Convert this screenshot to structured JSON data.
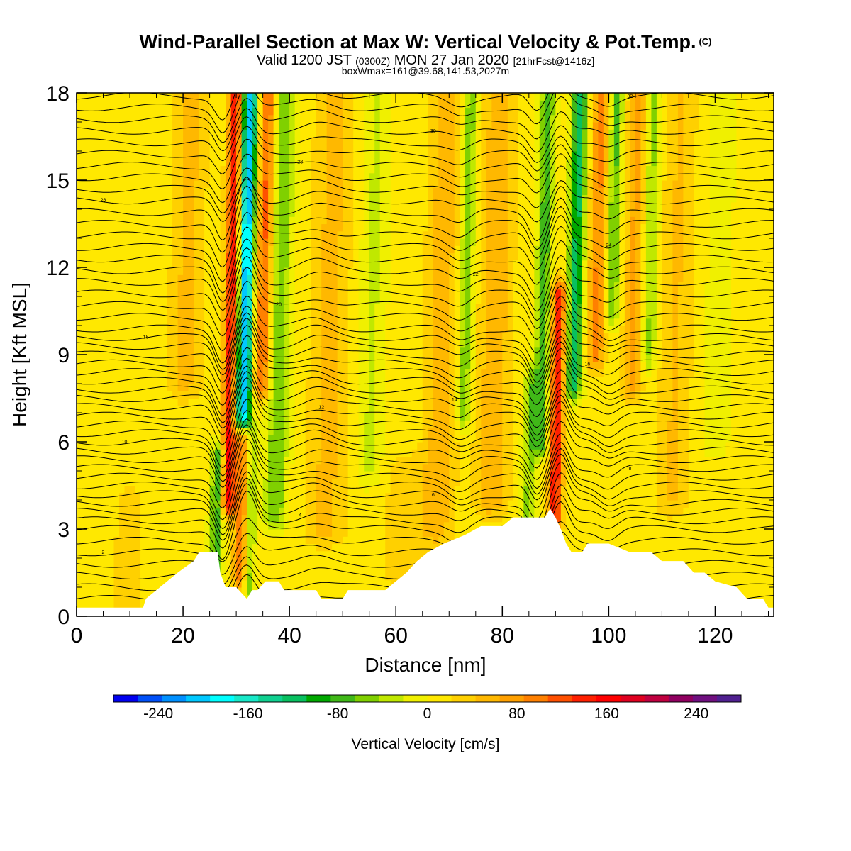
{
  "header": {
    "title": "Wind-Parallel Section at Max W: Vertical Velocity & Pot.Temp.",
    "copyright": "(C)",
    "valid_prefix": "Valid 1200 JST",
    "valid_utc": "(0300Z)",
    "valid_date": "MON 27 Jan 2020",
    "forecast": "[21hrFcst@1416z]",
    "box_info": "boxWmax=161@39.68,141.53,2027m"
  },
  "chart_data": {
    "type": "heatmap",
    "xlabel": "Distance [nm]",
    "ylabel": "Height [Kft MSL]",
    "xlim": [
      0,
      131
    ],
    "ylim": [
      0,
      18
    ],
    "x_ticks": [
      "0",
      "20",
      "40",
      "60",
      "80",
      "100",
      "120"
    ],
    "x_tick_values": [
      0,
      20,
      40,
      60,
      80,
      100,
      120
    ],
    "y_ticks": [
      "0",
      "3",
      "6",
      "9",
      "12",
      "15",
      "18"
    ],
    "y_tick_values": [
      0,
      3,
      6,
      9,
      12,
      15,
      18
    ],
    "colorbar": {
      "label": "Vertical Velocity [cm/s]",
      "tick_labels": [
        "-240",
        "-160",
        "-80",
        "0",
        "80",
        "160",
        "240"
      ],
      "tick_values": [
        -240,
        -160,
        -80,
        0,
        80,
        160,
        240
      ],
      "range": [
        -280,
        280
      ],
      "colors": [
        "#0000f0",
        "#0050f8",
        "#0090ff",
        "#00c8ff",
        "#00ffff",
        "#18e8c8",
        "#10d090",
        "#08c060",
        "#00a800",
        "#40b818",
        "#80d000",
        "#c0e800",
        "#f0f000",
        "#ffe800",
        "#ffd000",
        "#ffb800",
        "#ffa000",
        "#ff8000",
        "#ff5000",
        "#ff2000",
        "#ff0000",
        "#e00020",
        "#c00040",
        "#900060",
        "#701080",
        "#502090"
      ]
    },
    "background_w": 10,
    "w_bands": [
      {
        "x": 28.5,
        "w": 150,
        "sigma": 1.4,
        "zmin": 4.0,
        "zmax": 18
      },
      {
        "x": 31.0,
        "w": -230,
        "sigma": 1.5,
        "zmin": 7.0,
        "zmax": 18
      },
      {
        "x": 34.5,
        "w": 110,
        "sigma": 1.5,
        "zmin": 8.0,
        "zmax": 18
      },
      {
        "x": 37.5,
        "w": -70,
        "sigma": 2.2,
        "zmin": 3.5,
        "zmax": 18
      },
      {
        "x": 26.5,
        "w": -100,
        "sigma": 1.2,
        "zmin": 1.7,
        "zmax": 5.5
      },
      {
        "x": 31.0,
        "w": 90,
        "sigma": 1.2,
        "zmin": 1.5,
        "zmax": 6.0
      },
      {
        "x": 33.0,
        "w": -60,
        "sigma": 1.0,
        "zmin": 1.0,
        "zmax": 6.0
      },
      {
        "x": 20.0,
        "w": 40,
        "sigma": 3.0,
        "zmin": 8.0,
        "zmax": 18
      },
      {
        "x": 47.0,
        "w": 40,
        "sigma": 3.5,
        "zmin": 3.0,
        "zmax": 18
      },
      {
        "x": 55.0,
        "w": -35,
        "sigma": 2.5,
        "zmin": 5.0,
        "zmax": 18
      },
      {
        "x": 68.0,
        "w": 45,
        "sigma": 3.0,
        "zmin": 3.0,
        "zmax": 18
      },
      {
        "x": 72.5,
        "w": -70,
        "sigma": 1.4,
        "zmin": 7.0,
        "zmax": 18
      },
      {
        "x": 78.0,
        "w": 50,
        "sigma": 3.0,
        "zmin": 4.0,
        "zmax": 18
      },
      {
        "x": 85.0,
        "w": -60,
        "sigma": 1.3,
        "zmin": 3.2,
        "zmax": 8.0
      },
      {
        "x": 87.0,
        "w": -90,
        "sigma": 1.4,
        "zmin": 6.0,
        "zmax": 18
      },
      {
        "x": 90.0,
        "w": 140,
        "sigma": 1.3,
        "zmin": 3.5,
        "zmax": 11
      },
      {
        "x": 93.0,
        "w": -130,
        "sigma": 1.5,
        "zmin": 8.0,
        "zmax": 18
      },
      {
        "x": 97.0,
        "w": 80,
        "sigma": 1.6,
        "zmin": 9.0,
        "zmax": 18
      },
      {
        "x": 100.0,
        "w": -80,
        "sigma": 1.2,
        "zmin": 10.5,
        "zmax": 18
      },
      {
        "x": 104.0,
        "w": 60,
        "sigma": 1.8,
        "zmin": 8.0,
        "zmax": 18
      },
      {
        "x": 107.0,
        "w": -60,
        "sigma": 1.4,
        "zmin": 9.0,
        "zmax": 18
      },
      {
        "x": 112.0,
        "w": 35,
        "sigma": 3.0,
        "zmin": 4.0,
        "zmax": 18
      },
      {
        "x": 120.0,
        "w": -25,
        "sigma": 2.5,
        "zmin": 6.0,
        "zmax": 18
      },
      {
        "x": 10.0,
        "w": 20,
        "sigma": 3.0,
        "zmin": 0.3,
        "zmax": 4.0
      },
      {
        "x": 62.0,
        "w": 25,
        "sigma": 4.0,
        "zmin": 1.5,
        "zmax": 5.0
      }
    ],
    "terrain": [
      [
        0,
        0.3
      ],
      [
        5,
        0.3
      ],
      [
        10,
        0.3
      ],
      [
        12.5,
        0.3
      ],
      [
        13,
        0.6
      ],
      [
        15,
        0.9
      ],
      [
        17,
        1.2
      ],
      [
        19,
        1.5
      ],
      [
        22,
        1.9
      ],
      [
        23,
        2.2
      ],
      [
        26.5,
        2.2
      ],
      [
        27,
        1.5
      ],
      [
        28,
        1.0
      ],
      [
        30,
        1.0
      ],
      [
        31,
        0.8
      ],
      [
        32,
        0.6
      ],
      [
        33,
        0.9
      ],
      [
        34,
        0.9
      ],
      [
        35.5,
        1.2
      ],
      [
        38,
        1.2
      ],
      [
        39,
        0.9
      ],
      [
        45,
        0.9
      ],
      [
        46,
        0.6
      ],
      [
        50,
        0.6
      ],
      [
        51,
        0.9
      ],
      [
        58,
        0.9
      ],
      [
        60,
        1.2
      ],
      [
        62,
        1.5
      ],
      [
        64,
        1.9
      ],
      [
        66,
        2.2
      ],
      [
        69,
        2.5
      ],
      [
        73,
        2.8
      ],
      [
        76,
        3.1
      ],
      [
        80,
        3.1
      ],
      [
        82,
        3.4
      ],
      [
        88,
        3.4
      ],
      [
        89,
        3.7
      ],
      [
        90,
        3.4
      ],
      [
        91,
        3.0
      ],
      [
        92,
        2.5
      ],
      [
        93,
        2.2
      ],
      [
        95,
        2.2
      ],
      [
        96,
        2.5
      ],
      [
        100,
        2.5
      ],
      [
        104,
        2.2
      ],
      [
        108,
        2.2
      ],
      [
        110,
        1.9
      ],
      [
        114,
        1.9
      ],
      [
        116,
        1.5
      ],
      [
        118,
        1.5
      ],
      [
        120,
        1.2
      ],
      [
        124,
        1.0
      ],
      [
        126,
        0.6
      ],
      [
        129,
        0.6
      ],
      [
        130,
        0.3
      ],
      [
        131,
        0.3
      ]
    ],
    "theta_contours": {
      "base_levels": [
        0.6,
        1.0,
        1.4,
        1.8,
        2.2,
        2.6,
        3.0,
        3.3,
        3.6,
        3.9,
        4.2,
        4.5,
        4.8,
        5.1,
        5.4,
        5.7,
        6.0,
        6.3,
        6.6,
        6.9,
        7.2,
        7.5,
        7.8,
        8.1,
        8.4,
        8.7,
        9.0,
        9.3,
        9.6,
        9.9,
        10.3,
        10.7,
        11.1,
        11.5,
        11.9,
        12.3,
        12.7,
        13.1,
        13.5,
        13.9,
        14.3,
        14.7,
        15.1,
        15.5,
        15.9,
        16.3,
        16.7,
        17.1,
        17.5,
        17.9
      ],
      "wave_features": [
        {
          "x": 27.5,
          "amp": 1.1,
          "sigma": 2.0,
          "sign": -1
        },
        {
          "x": 32.0,
          "amp": 1.2,
          "sigma": 2.2,
          "sign": 1
        },
        {
          "x": 45.0,
          "amp": 0.3,
          "sigma": 4.0,
          "sign": 1
        },
        {
          "x": 72.0,
          "amp": 0.4,
          "sigma": 3.0,
          "sign": -1
        },
        {
          "x": 86.5,
          "amp": 0.9,
          "sigma": 2.0,
          "sign": -1
        },
        {
          "x": 91.0,
          "amp": 1.0,
          "sigma": 2.0,
          "sign": 1
        },
        {
          "x": 100.0,
          "amp": 0.35,
          "sigma": 2.5,
          "sign": -1
        }
      ],
      "labels": [
        "2",
        "4",
        "6",
        "8",
        "10",
        "12",
        "14",
        "16",
        "18",
        "20",
        "22",
        "24",
        "26",
        "28",
        "30",
        "32"
      ]
    }
  }
}
